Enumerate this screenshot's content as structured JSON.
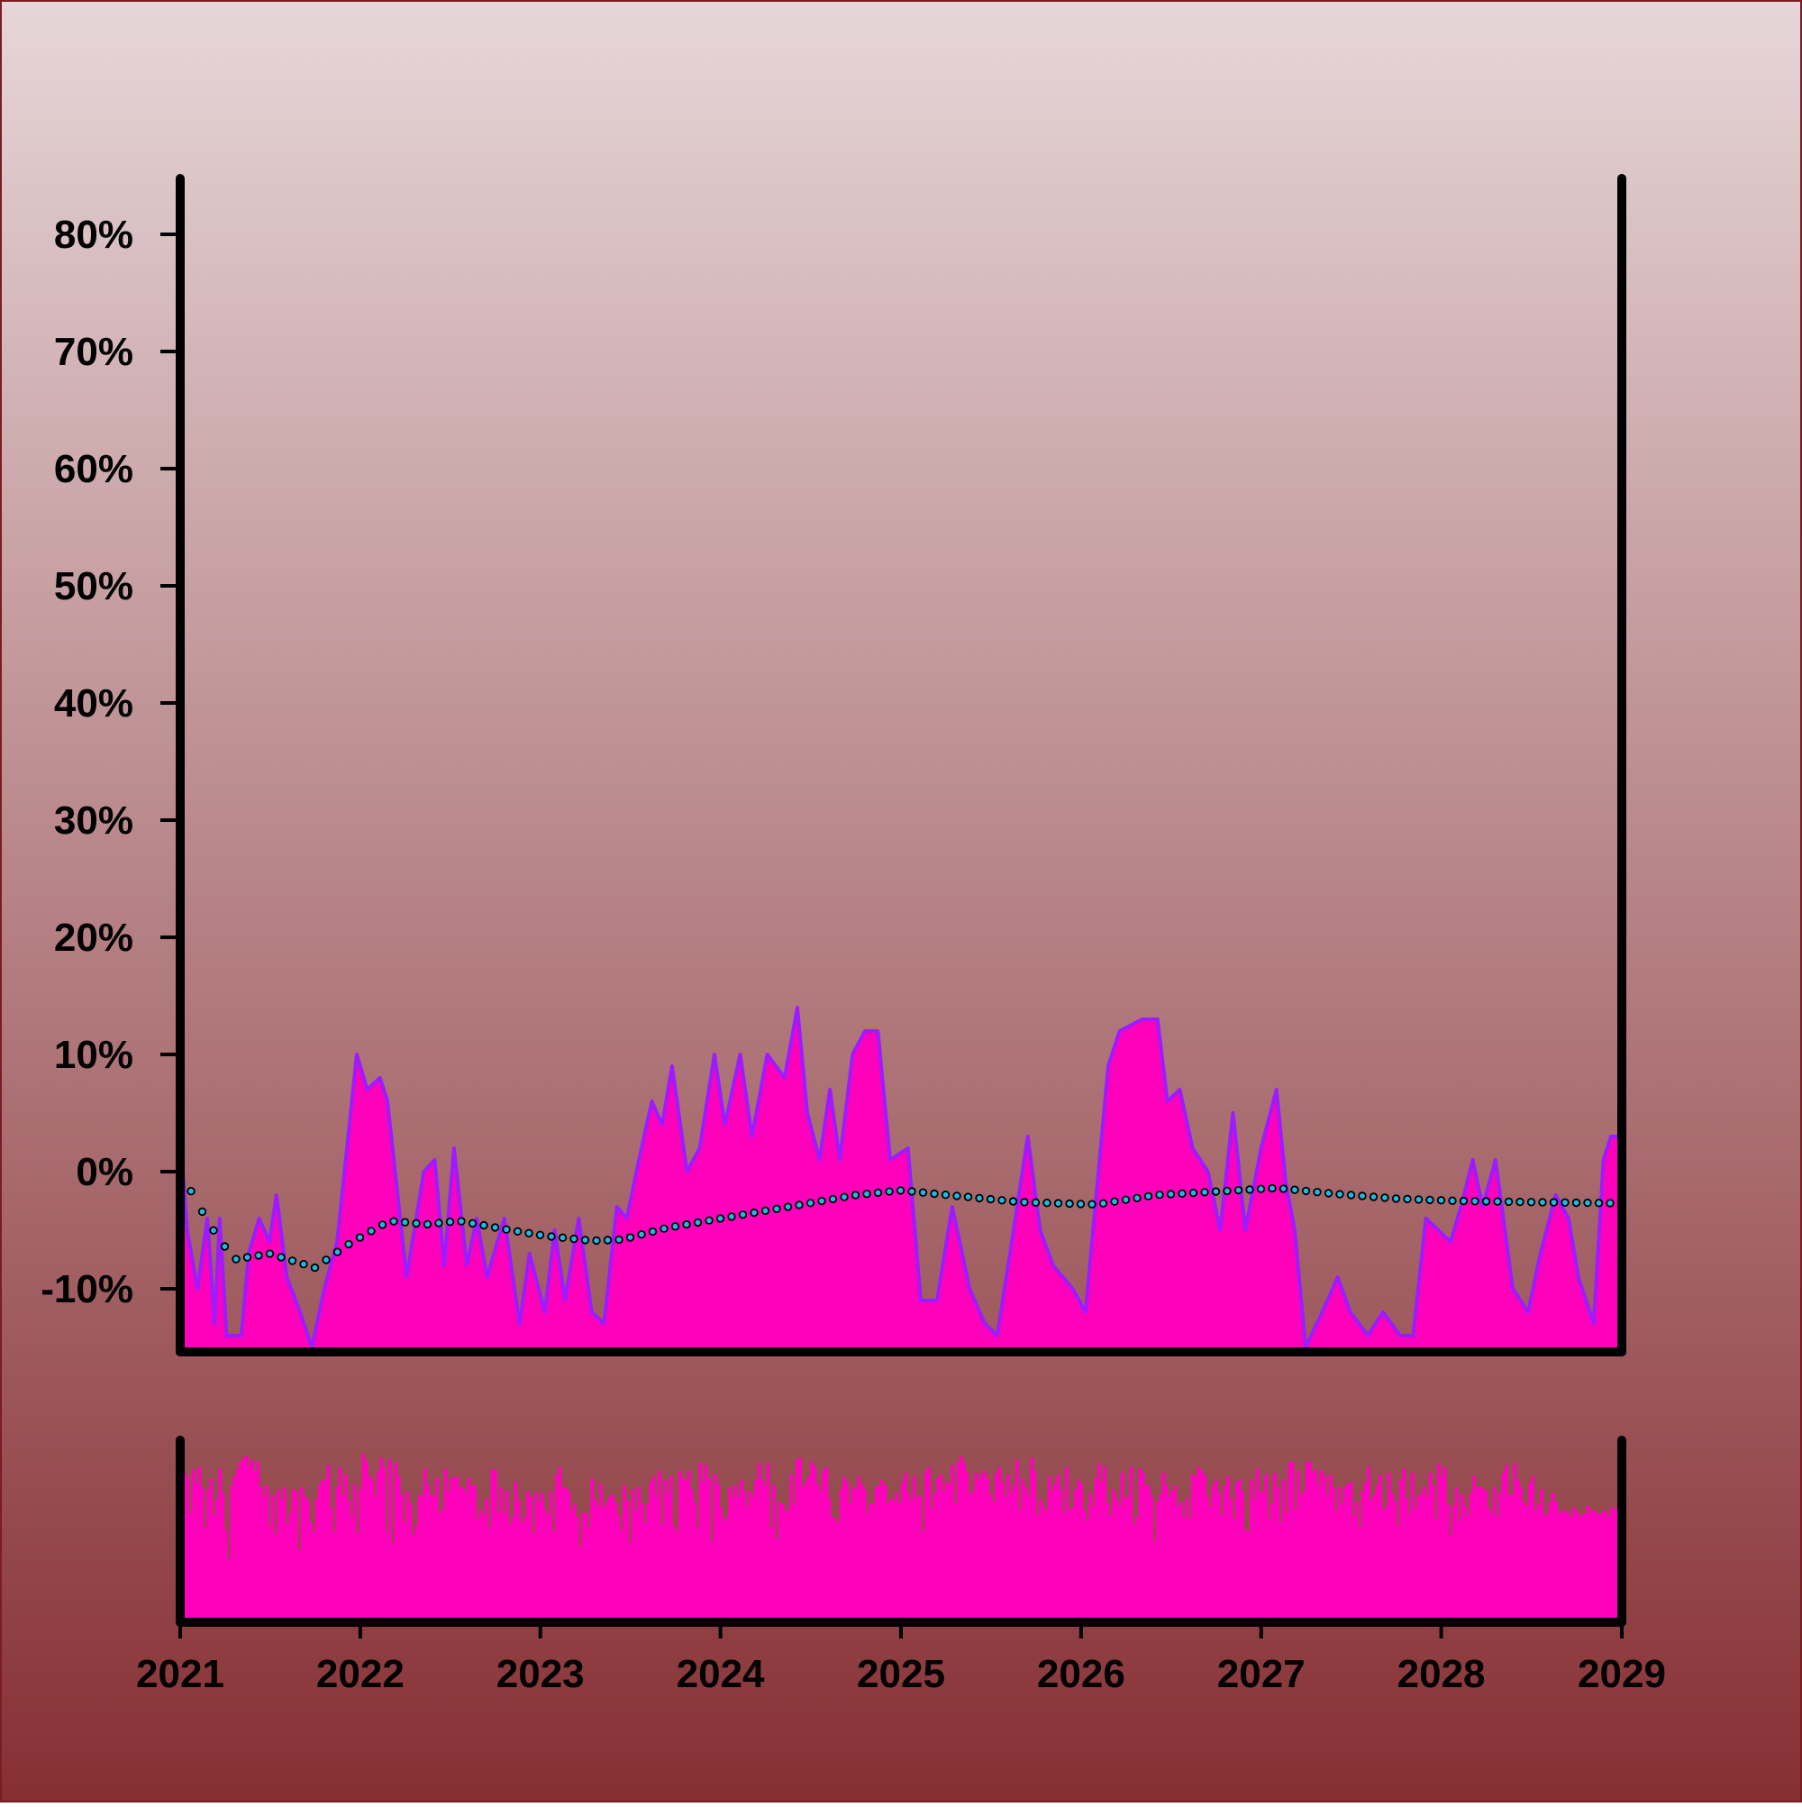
{
  "chart_data": {
    "type": "area",
    "background": {
      "top_color": "#e6d6d8",
      "bottom_color": "#862f33"
    },
    "colors": {
      "area_fill": "#ff00bb",
      "area_line": "#9d1cff",
      "trend_marker": "#22b8e0",
      "axis": "#000000"
    },
    "x_axis": {
      "ticks": [
        "2021",
        "2022",
        "2023",
        "2024",
        "2025",
        "2026",
        "2027",
        "2028",
        "2029"
      ],
      "range": [
        "2021-01-01",
        "2029-01-01"
      ]
    },
    "y_axis": {
      "ticks": [
        "-10%",
        "0%",
        "10%",
        "20%",
        "30%",
        "40%",
        "50%",
        "60%",
        "70%",
        "80%"
      ],
      "range": [
        -15,
        85
      ],
      "unit": "%"
    },
    "main_series": {
      "points": [
        [
          "2021-01-01",
          3
        ],
        [
          "2021-01-15",
          -5
        ],
        [
          "2021-02-05",
          -10
        ],
        [
          "2021-02-25",
          -4
        ],
        [
          "2021-03-12",
          -13
        ],
        [
          "2021-03-22",
          -4
        ],
        [
          "2021-04-05",
          -14
        ],
        [
          "2021-05-05",
          -14
        ],
        [
          "2021-05-20",
          -7
        ],
        [
          "2021-06-10",
          -4
        ],
        [
          "2021-07-01",
          -6
        ],
        [
          "2021-07-15",
          -2
        ],
        [
          "2021-08-05",
          -9
        ],
        [
          "2021-09-01",
          -12
        ],
        [
          "2021-09-25",
          -15
        ],
        [
          "2021-10-20",
          -10
        ],
        [
          "2021-11-15",
          -6
        ],
        [
          "2021-12-05",
          2
        ],
        [
          "2021-12-25",
          10
        ],
        [
          "2022-01-15",
          7
        ],
        [
          "2022-02-10",
          8
        ],
        [
          "2022-02-25",
          6
        ],
        [
          "2022-04-05",
          -9
        ],
        [
          "2022-05-10",
          0
        ],
        [
          "2022-06-01",
          1
        ],
        [
          "2022-06-20",
          -8
        ],
        [
          "2022-07-10",
          2
        ],
        [
          "2022-08-05",
          -8
        ],
        [
          "2022-08-25",
          -4
        ],
        [
          "2022-09-15",
          -9
        ],
        [
          "2022-10-20",
          -4
        ],
        [
          "2022-11-20",
          -13
        ],
        [
          "2022-12-10",
          -7
        ],
        [
          "2023-01-10",
          -12
        ],
        [
          "2023-01-30",
          -5
        ],
        [
          "2023-02-20",
          -11
        ],
        [
          "2023-03-20",
          -4
        ],
        [
          "2023-04-15",
          -12
        ],
        [
          "2023-05-10",
          -13
        ],
        [
          "2023-06-05",
          -3
        ],
        [
          "2023-06-25",
          -4
        ],
        [
          "2023-07-20",
          1
        ],
        [
          "2023-08-15",
          6
        ],
        [
          "2023-09-05",
          4
        ],
        [
          "2023-09-25",
          9
        ],
        [
          "2023-10-25",
          0
        ],
        [
          "2023-11-20",
          2
        ],
        [
          "2023-12-20",
          10
        ],
        [
          "2024-01-10",
          4
        ],
        [
          "2024-02-10",
          10
        ],
        [
          "2024-03-05",
          3
        ],
        [
          "2024-04-05",
          10
        ],
        [
          "2024-05-10",
          8
        ],
        [
          "2024-06-05",
          14
        ],
        [
          "2024-06-25",
          5
        ],
        [
          "2024-07-20",
          1
        ],
        [
          "2024-08-10",
          7
        ],
        [
          "2024-08-30",
          1
        ],
        [
          "2024-09-25",
          10
        ],
        [
          "2024-10-20",
          12
        ],
        [
          "2024-11-15",
          12
        ],
        [
          "2024-12-10",
          1
        ],
        [
          "2025-01-15",
          2
        ],
        [
          "2025-02-10",
          -11
        ],
        [
          "2025-03-15",
          -11
        ],
        [
          "2025-04-15",
          -3
        ],
        [
          "2025-05-20",
          -10
        ],
        [
          "2025-06-20",
          -13
        ],
        [
          "2025-07-15",
          -14
        ],
        [
          "2025-08-10",
          -7
        ],
        [
          "2025-09-15",
          3
        ],
        [
          "2025-10-10",
          -5
        ],
        [
          "2025-11-05",
          -8
        ],
        [
          "2025-12-15",
          -10
        ],
        [
          "2026-01-10",
          -12
        ],
        [
          "2026-02-25",
          9
        ],
        [
          "2026-03-20",
          12
        ],
        [
          "2026-05-05",
          13
        ],
        [
          "2026-06-05",
          13
        ],
        [
          "2026-06-25",
          6
        ],
        [
          "2026-07-20",
          7
        ],
        [
          "2026-08-15",
          2
        ],
        [
          "2026-09-15",
          0
        ],
        [
          "2026-10-10",
          -5
        ],
        [
          "2026-11-05",
          5
        ],
        [
          "2026-11-30",
          -5
        ],
        [
          "2027-01-01",
          2
        ],
        [
          "2027-02-01",
          7
        ],
        [
          "2027-02-20",
          -1
        ],
        [
          "2027-03-10",
          -5
        ],
        [
          "2027-04-01",
          -15
        ],
        [
          "2027-05-05",
          -12
        ],
        [
          "2027-06-05",
          -9
        ],
        [
          "2027-07-01",
          -12
        ],
        [
          "2027-08-05",
          -14
        ],
        [
          "2027-09-05",
          -12
        ],
        [
          "2027-10-10",
          -14
        ],
        [
          "2027-11-05",
          -14
        ],
        [
          "2027-12-01",
          -4
        ],
        [
          "2028-01-20",
          -6
        ],
        [
          "2028-02-10",
          -3
        ],
        [
          "2028-03-05",
          1
        ],
        [
          "2028-03-25",
          -3
        ],
        [
          "2028-04-20",
          1
        ],
        [
          "2028-05-25",
          -10
        ],
        [
          "2028-06-25",
          -12
        ],
        [
          "2028-07-20",
          -7
        ],
        [
          "2028-08-20",
          -2
        ],
        [
          "2028-09-15",
          -4
        ],
        [
          "2028-10-05",
          -9
        ],
        [
          "2028-11-05",
          -13
        ],
        [
          "2028-11-25",
          1
        ],
        [
          "2028-12-10",
          3
        ],
        [
          "2028-12-31",
          3
        ]
      ]
    },
    "trend_series": {
      "points": [
        [
          "2021-01-01",
          0
        ],
        [
          "2021-03-01",
          -4.5
        ],
        [
          "2021-04-20",
          -7.5
        ],
        [
          "2021-07-01",
          -7
        ],
        [
          "2021-10-01",
          -8.2
        ],
        [
          "2021-12-15",
          -6
        ],
        [
          "2022-03-01",
          -4.2
        ],
        [
          "2022-05-15",
          -4.5
        ],
        [
          "2022-07-20",
          -4.2
        ],
        [
          "2022-11-01",
          -5
        ],
        [
          "2023-01-15",
          -5.5
        ],
        [
          "2023-04-15",
          -5.9
        ],
        [
          "2023-06-15",
          -5.8
        ],
        [
          "2023-09-15",
          -4.8
        ],
        [
          "2024-01-01",
          -4
        ],
        [
          "2024-06-15",
          -2.8
        ],
        [
          "2024-10-01",
          -2
        ],
        [
          "2025-01-01",
          -1.6
        ],
        [
          "2025-05-01",
          -2.1
        ],
        [
          "2025-09-01",
          -2.6
        ],
        [
          "2026-02-01",
          -2.8
        ],
        [
          "2026-06-01",
          -2
        ],
        [
          "2026-10-01",
          -1.7
        ],
        [
          "2027-02-01",
          -1.4
        ],
        [
          "2027-06-01",
          -1.9
        ],
        [
          "2027-10-01",
          -2.3
        ],
        [
          "2028-02-01",
          -2.5
        ],
        [
          "2028-07-01",
          -2.6
        ],
        [
          "2028-12-31",
          -2.7
        ]
      ]
    },
    "volume_series": {
      "values": [
        63,
        81,
        79,
        59,
        83,
        75,
        84,
        73,
        51,
        72,
        78,
        58,
        67,
        83,
        70,
        50,
        34,
        74,
        79,
        83,
        87,
        89,
        90,
        85,
        88,
        82,
        87,
        73,
        68,
        74,
        52,
        69,
        48,
        72,
        67,
        73,
        53,
        59,
        72,
        71,
        39,
        73,
        68,
        66,
        54,
        49,
        67,
        74,
        77,
        77,
        85,
        62,
        49,
        73,
        84,
        68,
        80,
        66,
        57,
        75,
        48,
        72,
        91,
        87,
        79,
        77,
        68,
        82,
        89,
        84,
        49,
        88,
        43,
        86,
        79,
        69,
        54,
        71,
        64,
        47,
        52,
        69,
        68,
        83,
        74,
        69,
        68,
        78,
        59,
        61,
        83,
        71,
        78,
        78,
        79,
        73,
        73,
        70,
        78,
        74,
        74,
        56,
        61,
        58,
        67,
        51,
        83,
        82,
        59,
        73,
        59,
        71,
        53,
        57,
        76,
        66,
        54,
        57,
        71,
        68,
        48,
        70,
        65,
        70,
        61,
        58,
        71,
        49,
        80,
        84,
        73,
        73,
        71,
        60,
        64,
        57,
        41,
        59,
        59,
        51,
        78,
        66,
        63,
        75,
        62,
        65,
        68,
        69,
        65,
        58,
        50,
        74,
        66,
        43,
        72,
        60,
        73,
        64,
        54,
        64,
        76,
        79,
        68,
        82,
        53,
        77,
        70,
        79,
        52,
        49,
        82,
        78,
        77,
        82,
        72,
        65,
        51,
        86,
        76,
        85,
        78,
        44,
        80,
        75,
        62,
        55,
        57,
        73,
        68,
        74,
        68,
        77,
        71,
        63,
        71,
        68,
        77,
        86,
        77,
        74,
        86,
        51,
        74,
        45,
        65,
        64,
        60,
        61,
        80,
        64,
        88,
        89,
        73,
        76,
        79,
        87,
        84,
        75,
        71,
        82,
        84,
        67,
        57,
        56,
        54,
        72,
        79,
        76,
        64,
        73,
        72,
        79,
        75,
        72,
        59,
        64,
        64,
        73,
        74,
        77,
        74,
        64,
        67,
        66,
        70,
        64,
        76,
        81,
        70,
        66,
        79,
        68,
        68,
        49,
        82,
        84,
        62,
        70,
        78,
        80,
        71,
        76,
        75,
        85,
        64,
        87,
        90,
        86,
        81,
        69,
        71,
        81,
        77,
        80,
        82,
        78,
        69,
        65,
        81,
        84,
        76,
        68,
        80,
        70,
        74,
        88,
        61,
        78,
        73,
        68,
        89,
        82,
        58,
        67,
        63,
        60,
        79,
        71,
        75,
        80,
        72,
        59,
        84,
        61,
        62,
        72,
        77,
        75,
        61,
        55,
        70,
        63,
        78,
        86,
        76,
        84,
        64,
        58,
        72,
        67,
        63,
        81,
        67,
        68,
        84,
        53,
        57,
        83,
        81,
        74,
        74,
        68,
        44,
        65,
        69,
        81,
        74,
        68,
        71,
        74,
        63,
        65,
        57,
        67,
        56,
        80,
        79,
        84,
        82,
        80,
        68,
        63,
        74,
        77,
        70,
        58,
        74,
        79,
        67,
        56,
        76,
        77,
        71,
        50,
        49,
        77,
        67,
        83,
        71,
        70,
        80,
        56,
        64,
        81,
        73,
        54,
        77,
        59,
        86,
        87,
        61,
        82,
        69,
        71,
        87,
        87,
        81,
        83,
        74,
        82,
        79,
        69,
        80,
        73,
        60,
        73,
        64,
        73,
        75,
        76,
        57,
        65,
        51,
        71,
        76,
        84,
        66,
        69,
        74,
        80,
        61,
        63,
        81,
        70,
        66,
        52,
        77,
        83,
        67,
        59,
        81,
        62,
        68,
        70,
        73,
        68,
        81,
        74,
        56,
        86,
        79,
        84,
        64,
        47,
        63,
        73,
        55,
        69,
        63,
        58,
        70,
        79,
        73,
        73,
        73,
        71,
        62,
        59,
        73,
        57,
        70,
        81,
        85,
        69,
        69,
        86,
        77,
        73,
        65,
        63,
        75,
        79,
        61,
        64,
        72,
        58,
        59,
        65,
        70,
        65,
        60,
        59,
        61,
        59,
        57,
        62,
        60,
        58,
        58,
        59,
        63,
        60,
        61,
        59,
        58,
        60,
        60,
        57,
        62,
        61,
        63,
        59
      ]
    }
  }
}
